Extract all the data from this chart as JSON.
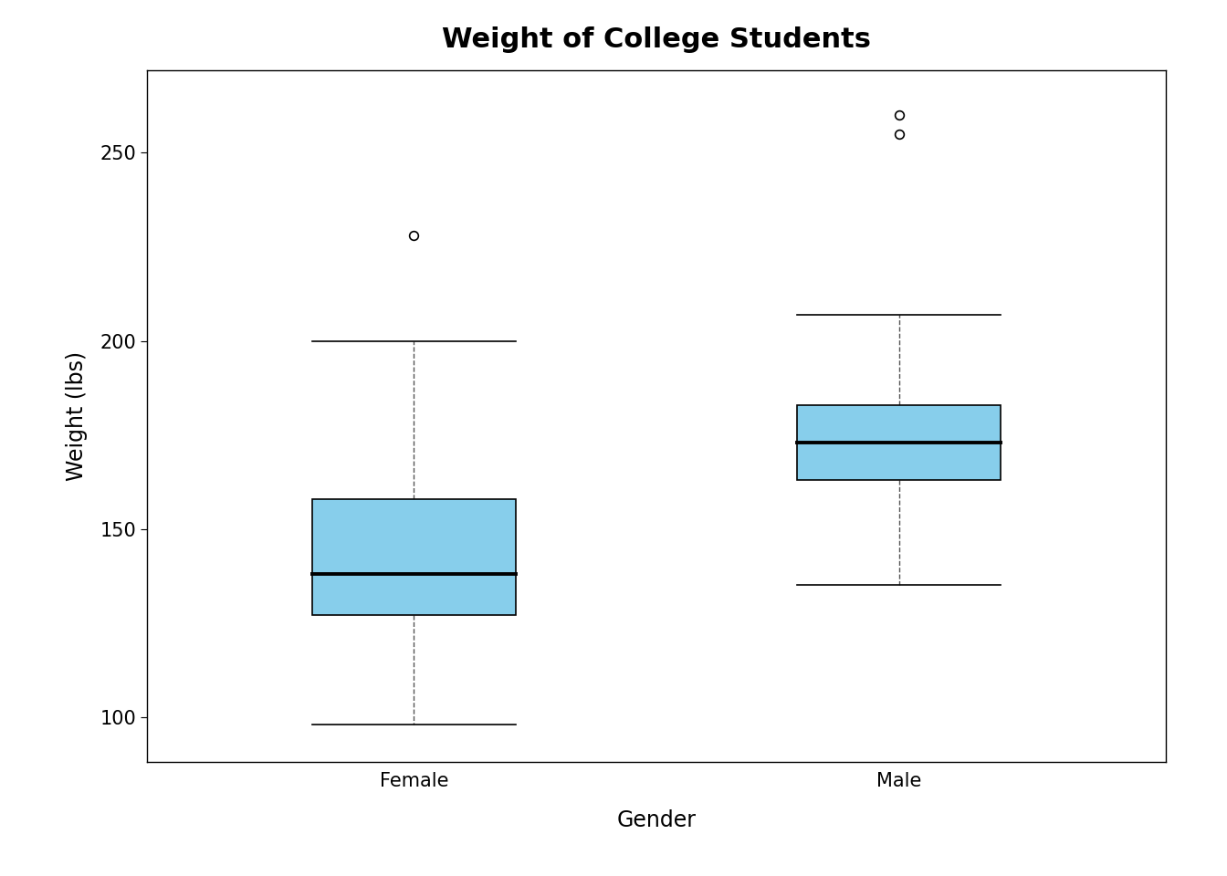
{
  "title": "Weight of College Students",
  "xlabel": "Gender",
  "ylabel": "Weight (lbs)",
  "categories": [
    "Female",
    "Male"
  ],
  "box_color": "#87CEEB",
  "box_edge_color": "#000000",
  "median_color": "#000000",
  "whisker_color": "#555555",
  "outlier_color": "#000000",
  "female": {
    "q1": 127,
    "median": 138,
    "q3": 158,
    "whisker_low": 98,
    "whisker_high": 200,
    "outliers": [
      228
    ]
  },
  "male": {
    "q1": 163,
    "median": 173,
    "q3": 183,
    "whisker_low": 135,
    "whisker_high": 207,
    "outliers": [
      255,
      260
    ]
  },
  "ylim": [
    88,
    272
  ],
  "yticks": [
    100,
    150,
    200,
    250
  ],
  "background_color": "#ffffff",
  "box_width": 0.42,
  "title_fontsize": 22,
  "label_fontsize": 17,
  "tick_fontsize": 15
}
